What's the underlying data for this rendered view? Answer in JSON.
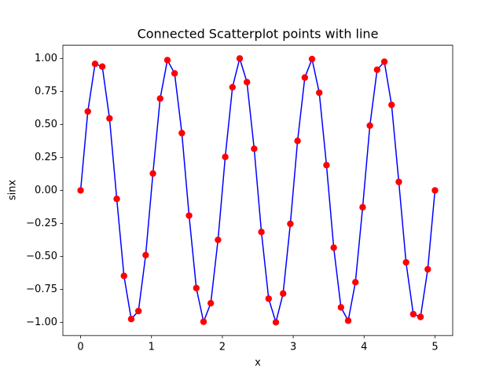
{
  "chart_data": {
    "type": "line",
    "title": "Connected Scatterplot points with line",
    "x_label": "x",
    "y_label": "sinx",
    "x": [
      0,
      0.102,
      0.2041,
      0.3061,
      0.4082,
      0.5102,
      0.6122,
      0.7143,
      0.8163,
      0.9184,
      1.0204,
      1.1224,
      1.2245,
      1.3265,
      1.4286,
      1.5306,
      1.6327,
      1.7347,
      1.8367,
      1.9388,
      2.0408,
      2.1429,
      2.2449,
      2.3469,
      2.449,
      2.551,
      2.6531,
      2.7551,
      2.8571,
      2.9592,
      3.0612,
      3.1633,
      3.2653,
      3.3673,
      3.4694,
      3.5714,
      3.6735,
      3.7755,
      3.8776,
      3.9796,
      4.0816,
      4.1837,
      4.2857,
      4.3878,
      4.4898,
      4.5918,
      4.6939,
      4.7959,
      4.898,
      5
    ],
    "values": [
      0,
      0.598,
      0.959,
      0.938,
      0.5456,
      -0.0641,
      -0.648,
      -0.975,
      -0.9144,
      -0.4907,
      0.1279,
      0.6959,
      0.9872,
      0.8866,
      0.4339,
      -0.1912,
      -0.7402,
      -0.9954,
      -0.8551,
      -0.3752,
      0.2536,
      0.7818,
      0.9995,
      0.8204,
      0.3151,
      -0.3151,
      -0.8204,
      -0.9995,
      -0.7818,
      -0.2536,
      0.3752,
      0.8551,
      0.9954,
      0.7402,
      0.1912,
      -0.4339,
      -0.8866,
      -0.9872,
      -0.6959,
      -0.1279,
      0.4907,
      0.9144,
      0.975,
      0.648,
      0.0641,
      -0.5456,
      -0.938,
      -0.959,
      -0.598,
      0
    ],
    "color": "#0000ff",
    "marker_color": "#ff0000",
    "xlim": [
      -0.25,
      5.25
    ],
    "xticks": [
      0,
      1,
      2,
      3,
      4,
      5
    ],
    "ylim": [
      -1.1,
      1.1
    ],
    "yticks": [
      {
        "value": -1,
        "label": "−1.00"
      },
      {
        "value": -0.75,
        "label": "−0.75"
      },
      {
        "value": -0.5,
        "label": "−0.50"
      },
      {
        "value": -0.25,
        "label": "−0.25"
      },
      {
        "value": 0,
        "label": "0.00"
      },
      {
        "value": 0.25,
        "label": "0.25"
      },
      {
        "value": 0.5,
        "label": "0.50"
      },
      {
        "value": 0.75,
        "label": "0.75"
      },
      {
        "value": 1,
        "label": "1.00"
      }
    ],
    "grid": false
  }
}
